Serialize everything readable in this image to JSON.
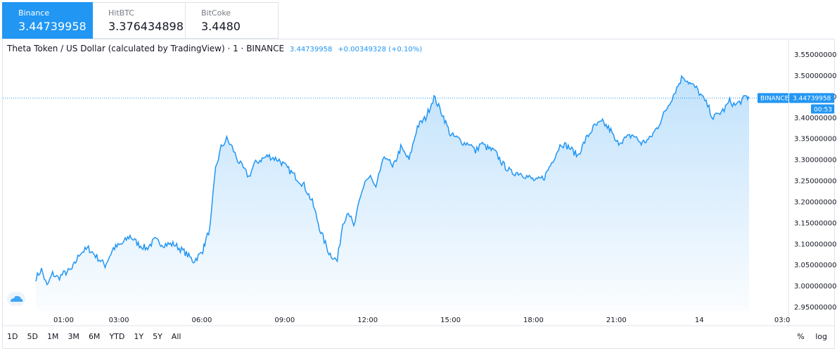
{
  "exchanges": [
    {
      "name": "Binance",
      "price": "3.44739958",
      "active": true
    },
    {
      "name": "HitBTC",
      "price": "3.376434898",
      "active": false
    },
    {
      "name": "BitCoke",
      "price": "3.4480",
      "active": false
    }
  ],
  "legend": {
    "title": "Theta Token / US Dollar (calculated by TradingView) · 1 · BINANCE",
    "last": "3.44739958",
    "change": "+0.00349328 (+0.10%)"
  },
  "price_label": {
    "exchange": "BINANCE",
    "value": "3.44739958",
    "countdown": "00:53"
  },
  "ranges": [
    "1D",
    "5D",
    "1M",
    "3M",
    "6M",
    "YTD",
    "1Y",
    "5Y",
    "All"
  ],
  "scale_buttons": [
    "%",
    "log"
  ],
  "colors": {
    "line": "#2196f3",
    "accent": "#2196f3"
  },
  "chart_data": {
    "type": "area",
    "ylim": [
      2.95,
      3.55
    ],
    "yticks": [
      "3.55000000",
      "3.50000000",
      "3.45000000",
      "3.40000000",
      "3.35000000",
      "3.30000000",
      "3.25000000",
      "3.20000000",
      "3.15000000",
      "3.10000000",
      "3.05000000",
      "3.00000000",
      "2.95000000"
    ],
    "x_hours": [
      0.0,
      0.2,
      0.4,
      0.6,
      0.8,
      1.0,
      1.3,
      1.6,
      1.9,
      2.2,
      2.5,
      2.8,
      3.1,
      3.4,
      3.7,
      4.0,
      4.3,
      4.6,
      5.0,
      5.4,
      5.7,
      6.0,
      6.1,
      6.3,
      6.5,
      6.7,
      6.9,
      7.1,
      7.3,
      7.5,
      7.7,
      7.9,
      8.1,
      8.4,
      8.8,
      9.1,
      9.4,
      9.7,
      10.0,
      10.3,
      10.6,
      10.9,
      11.1,
      11.3,
      11.5,
      11.7,
      11.9,
      12.1,
      12.3,
      12.5,
      12.7,
      12.9,
      13.2,
      13.5,
      13.8,
      14.1,
      14.4,
      14.7,
      15.0,
      15.3,
      15.5,
      15.7,
      15.9,
      16.1,
      16.3,
      16.6,
      16.9,
      17.2,
      17.5,
      17.8,
      18.1,
      18.4,
      18.7,
      19.0,
      19.3,
      19.6,
      19.9,
      20.2,
      20.5,
      20.8,
      21.0,
      21.3,
      21.6,
      21.9,
      22.2,
      22.5,
      22.8,
      23.1,
      23.4,
      23.7,
      23.9,
      24.1,
      24.3,
      24.5,
      24.7,
      24.9,
      25.1,
      25.3,
      25.5,
      25.7,
      25.8
    ],
    "y": [
      3.02,
      3.04,
      3.0,
      3.03,
      3.02,
      3.03,
      3.04,
      3.08,
      3.09,
      3.07,
      3.05,
      3.09,
      3.1,
      3.12,
      3.1,
      3.09,
      3.11,
      3.1,
      3.1,
      3.08,
      3.06,
      3.08,
      3.1,
      3.14,
      3.28,
      3.33,
      3.35,
      3.33,
      3.3,
      3.28,
      3.26,
      3.29,
      3.3,
      3.31,
      3.3,
      3.28,
      3.26,
      3.24,
      3.2,
      3.13,
      3.08,
      3.06,
      3.15,
      3.18,
      3.14,
      3.2,
      3.25,
      3.26,
      3.23,
      3.29,
      3.31,
      3.28,
      3.33,
      3.3,
      3.38,
      3.4,
      3.45,
      3.41,
      3.36,
      3.35,
      3.34,
      3.34,
      3.32,
      3.34,
      3.33,
      3.32,
      3.29,
      3.27,
      3.27,
      3.26,
      3.25,
      3.26,
      3.3,
      3.34,
      3.33,
      3.31,
      3.35,
      3.38,
      3.39,
      3.37,
      3.34,
      3.35,
      3.36,
      3.34,
      3.35,
      3.38,
      3.42,
      3.46,
      3.5,
      3.48,
      3.47,
      3.45,
      3.43,
      3.4,
      3.41,
      3.42,
      3.44,
      3.43,
      3.44,
      3.45,
      3.447
    ],
    "last_price": 3.44739958,
    "xticks": [
      {
        "label": "01:00",
        "h": 1
      },
      {
        "label": "03:00",
        "h": 3
      },
      {
        "label": "06:00",
        "h": 6
      },
      {
        "label": "09:00",
        "h": 9
      },
      {
        "label": "12:00",
        "h": 12
      },
      {
        "label": "15:00",
        "h": 15
      },
      {
        "label": "18:00",
        "h": 18
      },
      {
        "label": "21:00",
        "h": 21
      },
      {
        "label": "14",
        "h": 24
      },
      {
        "label": "03:0",
        "h": 27
      }
    ],
    "grid": false
  }
}
